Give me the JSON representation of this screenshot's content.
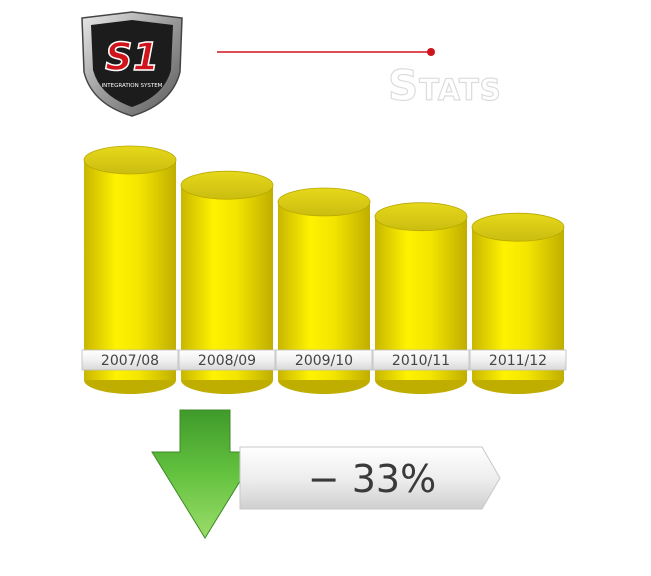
{
  "header": {
    "logo_main": "S1",
    "logo_sub": "INTEGRATION SYSTEM",
    "title": "Stats"
  },
  "summary": {
    "change_label": "− 33%",
    "direction": "down",
    "arrow_color": "#5dba3a"
  },
  "chart_data": {
    "type": "bar",
    "categories": [
      "2007/08",
      "2008/09",
      "2009/10",
      "2010/11",
      "2011/12"
    ],
    "values": [
      100,
      88,
      80,
      73,
      68
    ],
    "title": "Stats",
    "xlabel": "",
    "ylabel": "",
    "ylim": [
      0,
      100
    ],
    "grid": false,
    "legend": "none",
    "colors": {
      "bar": "#f2e300",
      "bar_top": "#d9cc12",
      "bar_shade": "#c9b800"
    }
  }
}
